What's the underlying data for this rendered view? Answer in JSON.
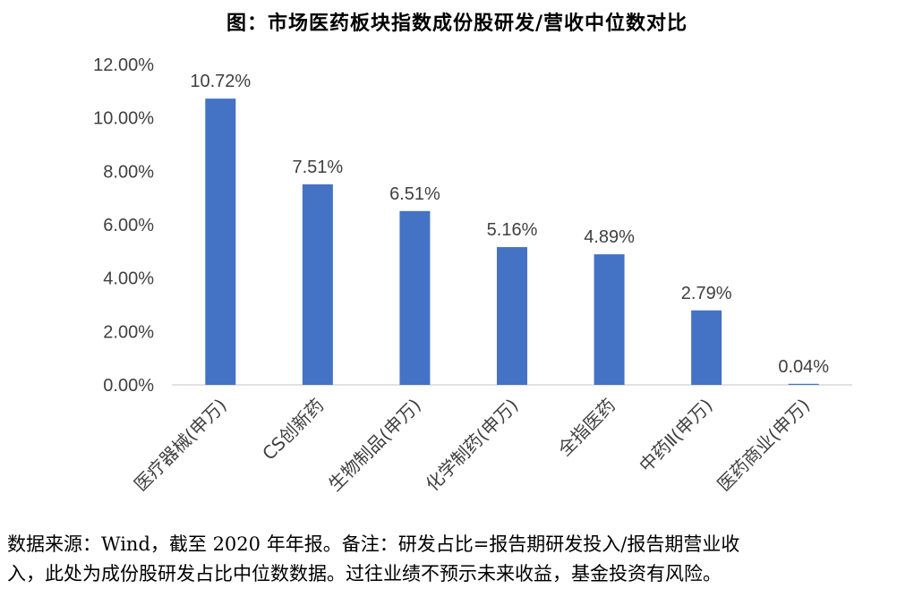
{
  "title": "图：市场医药板块指数成份股研发/营收中位数对比",
  "chart_data": {
    "type": "bar",
    "categories": [
      "医疗器械(申万)",
      "CS创新药",
      "生物制品(申万)",
      "化学制药(申万)",
      "全指医药",
      "中药Ⅱ(申万)",
      "医药商业(申万)"
    ],
    "values": [
      10.72,
      7.51,
      6.51,
      5.16,
      4.89,
      2.79,
      0.04
    ],
    "data_labels": [
      "10.72%",
      "7.51%",
      "6.51%",
      "5.16%",
      "4.89%",
      "2.79%",
      "0.04%"
    ],
    "yticks": [
      "0.00%",
      "2.00%",
      "4.00%",
      "6.00%",
      "8.00%",
      "10.00%",
      "12.00%"
    ],
    "ylim": [
      0,
      12
    ],
    "ystep": 2,
    "grid": false,
    "bar_color": "#4472C4",
    "axis_color": "#D9D9D9",
    "label_color": "#404040"
  },
  "footnote": {
    "line1": "数据来源：Wind，截至 2020 年年报。备注：研发占比=报告期研发投入/报告期营业收",
    "line2": "入，此处为成份股研发占比中位数数据。过往业绩不预示未来收益，基金投资有风险。"
  }
}
